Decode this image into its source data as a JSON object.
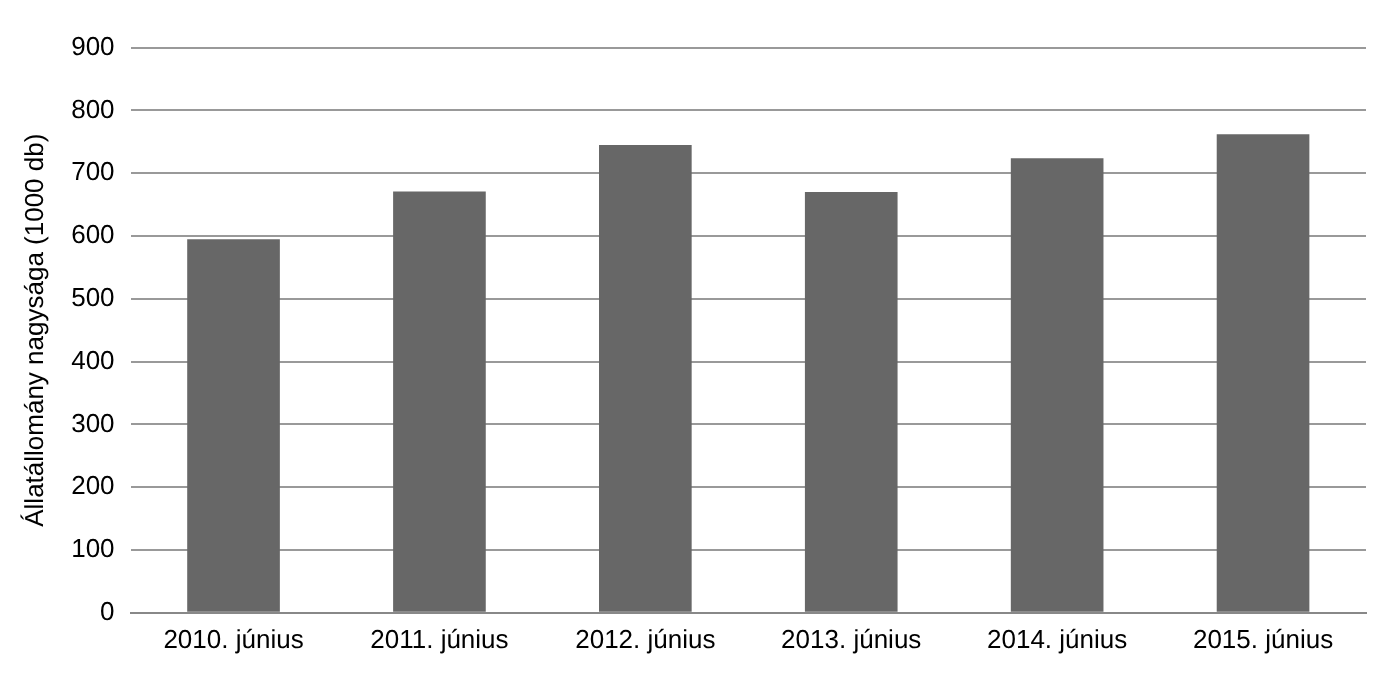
{
  "chart_data": {
    "type": "bar",
    "ylabel": "Állatállomány nagysága (1000 db)",
    "categories": [
      "2010. június",
      "2011. június",
      "2012. június",
      "2013. június",
      "2014. június",
      "2015. június"
    ],
    "values": [
      595,
      671,
      745,
      670,
      724,
      762
    ],
    "color": "#676767",
    "ylim": [
      0,
      900
    ],
    "yticks": [
      0,
      100,
      200,
      300,
      400,
      500,
      600,
      700,
      800,
      900
    ],
    "grid": "y",
    "legend": false
  }
}
